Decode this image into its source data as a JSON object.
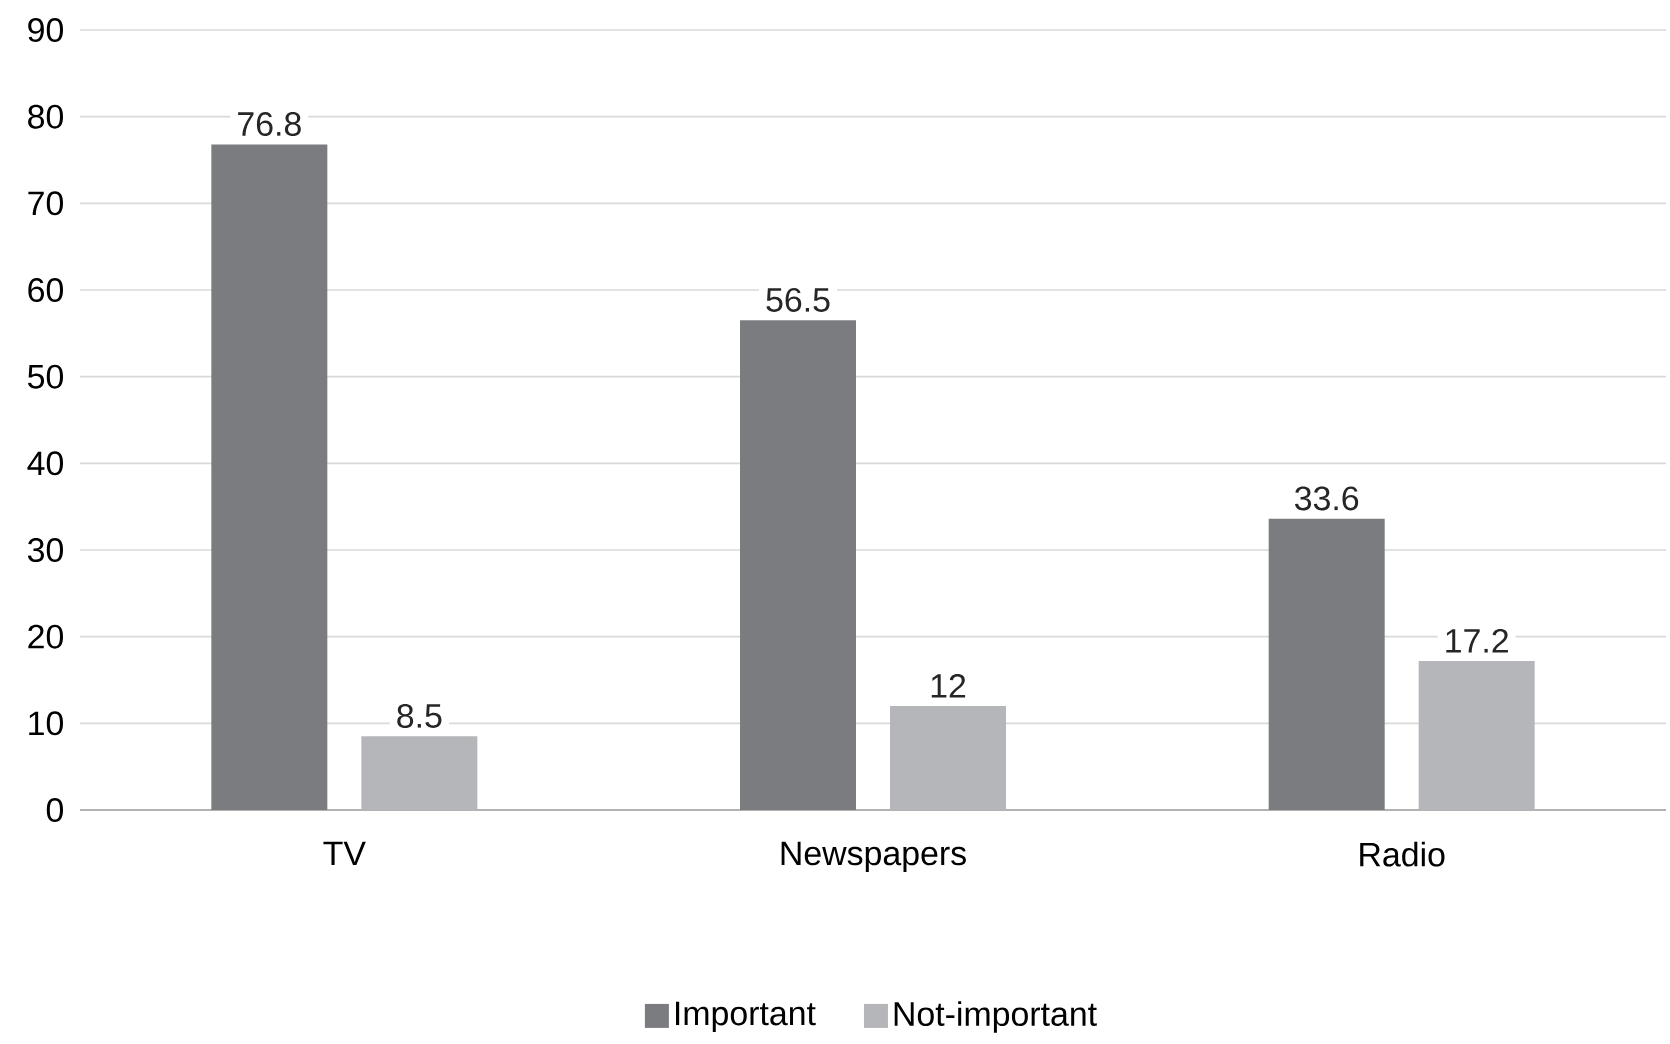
{
  "chart_data": {
    "type": "bar",
    "categories": [
      "TV",
      "Newspapers",
      "Radio"
    ],
    "series": [
      {
        "name": "Important",
        "color": "#7b7c7f",
        "values": [
          76.8,
          56.5,
          33.6
        ]
      },
      {
        "name": "Not-important",
        "color": "#b5b6b9",
        "values": [
          8.5,
          12,
          17.2
        ]
      }
    ],
    "ylim": [
      0,
      90
    ],
    "yticks": [
      0,
      10,
      20,
      30,
      40,
      50,
      60,
      70,
      80,
      90
    ],
    "grid": "y",
    "legend": "bottom",
    "data_labels": true
  }
}
